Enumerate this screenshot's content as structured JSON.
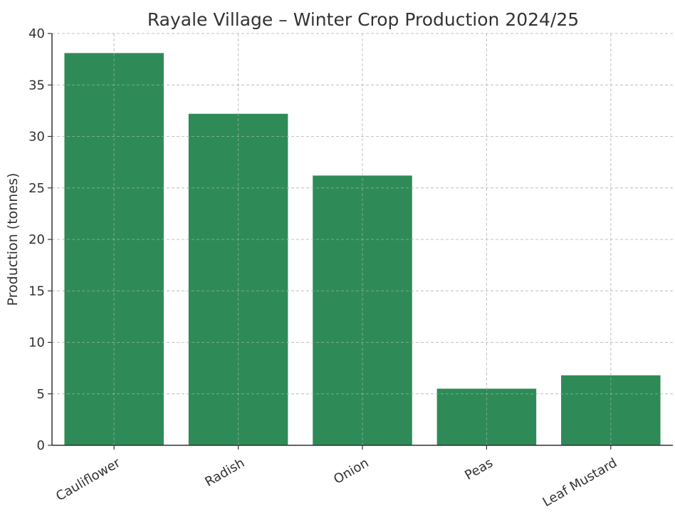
{
  "chart_data": {
    "type": "bar",
    "title": "Rayale Village – Winter Crop Production 2024/25",
    "xlabel": "",
    "ylabel": "Production (tonnes)",
    "categories": [
      "Cauliflower",
      "Radish",
      "Onion",
      "Peas",
      "Leaf Mustard"
    ],
    "values": [
      38.1,
      32.2,
      26.2,
      5.5,
      6.8
    ],
    "ylim": [
      0,
      40
    ],
    "yticks": [
      0,
      5,
      10,
      15,
      20,
      25,
      30,
      35,
      40
    ],
    "grid": true,
    "bar_color": "#2e8b57"
  }
}
